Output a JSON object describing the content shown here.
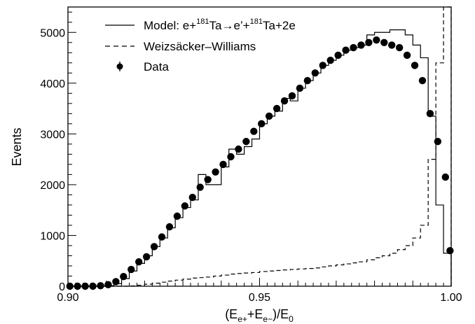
{
  "chart_data": {
    "type": "histogram",
    "xlabel": {
      "main": "(E",
      "sub1": "e+",
      "plus": "+E",
      "sub2": "e−",
      "tail": ")/E",
      "sub3": "0"
    },
    "ylabel": "Events",
    "xlim": [
      0.9,
      1.0
    ],
    "ylim": [
      0,
      5500
    ],
    "xticks": [
      {
        "value": 0.9,
        "label": "0.90"
      },
      {
        "value": 0.95,
        "label": "0.95"
      },
      {
        "value": 1.0,
        "label": "1.00"
      }
    ],
    "yticks": [
      {
        "value": 0,
        "label": "0"
      },
      {
        "value": 1000,
        "label": "1000"
      },
      {
        "value": 2000,
        "label": "2000"
      },
      {
        "value": 3000,
        "label": "3000"
      },
      {
        "value": 4000,
        "label": "4000"
      },
      {
        "value": 5000,
        "label": "5000"
      }
    ],
    "legend": {
      "position": "top-left",
      "model": {
        "t1": "Model: e+",
        "sup1": "181",
        "t2": "Ta→e’+",
        "sup2": "181",
        "t3": "Ta+2e"
      },
      "ww": "Weizsäcker–Williams",
      "data": "Data"
    },
    "bin_edges": [
      0.9,
      0.902,
      0.904,
      0.906,
      0.908,
      0.91,
      0.912,
      0.914,
      0.916,
      0.918,
      0.92,
      0.922,
      0.924,
      0.926,
      0.928,
      0.93,
      0.932,
      0.934,
      0.936,
      0.938,
      0.94,
      0.942,
      0.944,
      0.946,
      0.948,
      0.95,
      0.952,
      0.954,
      0.956,
      0.958,
      0.96,
      0.962,
      0.964,
      0.966,
      0.968,
      0.97,
      0.972,
      0.974,
      0.976,
      0.978,
      0.98,
      0.982,
      0.984,
      0.986,
      0.988,
      0.99,
      0.992,
      0.994,
      0.996,
      0.998,
      1.0
    ],
    "series": [
      {
        "name": "Model: e+181Ta→e’+181Ta+2e",
        "style": "solid-step",
        "values": [
          0,
          0,
          0,
          0,
          0,
          10,
          50,
          150,
          300,
          450,
          600,
          780,
          950,
          1150,
          1350,
          1550,
          1700,
          2200,
          2000,
          2000,
          2350,
          2700,
          2600,
          2750,
          2900,
          3200,
          3350,
          3450,
          3700,
          3650,
          3900,
          4050,
          4200,
          4350,
          4450,
          4550,
          4650,
          4700,
          4750,
          4950,
          5000,
          5000,
          5050,
          5050,
          4950,
          4750,
          4500,
          3350,
          1600,
          650
        ]
      },
      {
        "name": "Weizsäcker–Williams",
        "style": "dashed-step",
        "values": [
          0,
          0,
          0,
          0,
          0,
          0,
          0,
          0,
          5,
          20,
          40,
          60,
          80,
          100,
          120,
          140,
          160,
          170,
          180,
          200,
          220,
          240,
          250,
          260,
          270,
          290,
          300,
          310,
          320,
          330,
          340,
          350,
          360,
          380,
          400,
          420,
          440,
          460,
          480,
          520,
          560,
          600,
          650,
          720,
          800,
          950,
          1200,
          2500,
          4400,
          5600
        ]
      }
    ],
    "data_points": {
      "name": "Data",
      "x": [
        0.9005,
        0.9025,
        0.9045,
        0.9065,
        0.9085,
        0.9105,
        0.9125,
        0.9145,
        0.9165,
        0.9185,
        0.9205,
        0.9225,
        0.9245,
        0.9265,
        0.9285,
        0.9305,
        0.9325,
        0.9345,
        0.9365,
        0.9385,
        0.9405,
        0.9425,
        0.9445,
        0.9465,
        0.9485,
        0.9505,
        0.9525,
        0.9545,
        0.9565,
        0.9585,
        0.9605,
        0.9625,
        0.9645,
        0.9665,
        0.9685,
        0.9705,
        0.9725,
        0.9745,
        0.9765,
        0.9785,
        0.9805,
        0.9825,
        0.9845,
        0.9865,
        0.9885,
        0.9905,
        0.9925,
        0.9945,
        0.9965,
        0.9985
      ],
      "y": [
        0,
        0,
        0,
        0,
        10,
        30,
        90,
        190,
        330,
        480,
        580,
        780,
        970,
        1170,
        1380,
        1580,
        1750,
        1950,
        2100,
        2250,
        2400,
        2550,
        2700,
        2850,
        3050,
        3200,
        3350,
        3500,
        3650,
        3750,
        3900,
        4050,
        4200,
        4350,
        4450,
        4550,
        4650,
        4700,
        4750,
        4800,
        4850,
        4800,
        4750,
        4700,
        4550,
        4350,
        4050,
        3400,
        2850,
        2150
      ]
    },
    "extra_point": {
      "x": 0.9997,
      "y": 700
    }
  }
}
